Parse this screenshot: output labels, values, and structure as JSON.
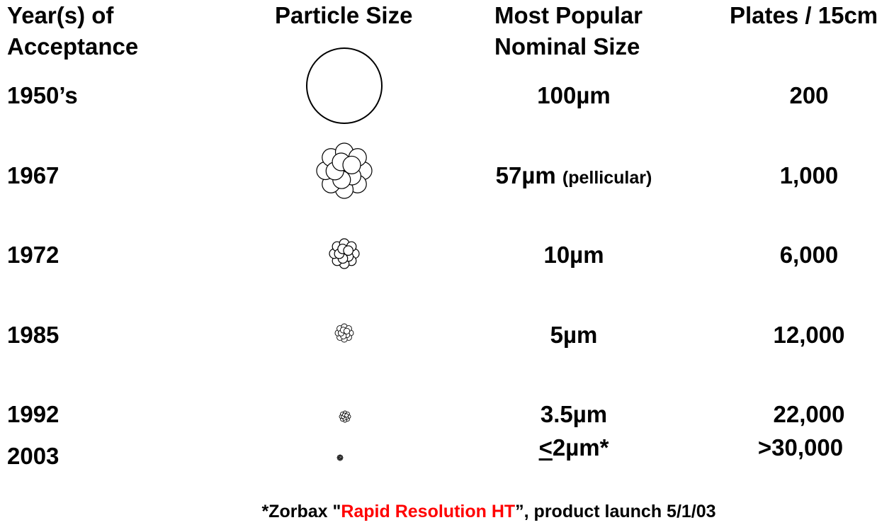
{
  "headers": {
    "year": [
      "Year(s) of",
      "Acceptance"
    ],
    "particle": "Particle Size",
    "nominal": [
      "Most Popular",
      "Nominal Size"
    ],
    "plates": "Plates / 15cm"
  },
  "rows": [
    {
      "year": "1950’s",
      "size": "100µm",
      "note": "",
      "plates": "200",
      "particle_style": "solid-sphere",
      "relative_size": 1.0
    },
    {
      "year": "1967",
      "size": "57µm",
      "note": "(pellicular)",
      "plates": "1,000",
      "particle_style": "cluster",
      "relative_size": 0.71
    },
    {
      "year": "1972",
      "size": "10µm",
      "note": "",
      "plates": "6,000",
      "particle_style": "cluster",
      "relative_size": 0.4
    },
    {
      "year": "1985",
      "size": "5µm",
      "note": "",
      "plates": "12,000",
      "particle_style": "cluster",
      "relative_size": 0.24
    },
    {
      "year": "1992",
      "size": "3.5µm",
      "note": "",
      "plates": "22,000",
      "particle_style": "cluster",
      "relative_size": 0.15
    },
    {
      "year": "2003",
      "size_prefix": "<",
      "size": "2µm*",
      "note": "",
      "plates": ">30,000",
      "particle_style": "cluster",
      "relative_size": 0.07
    }
  ],
  "footnote": {
    "before": "*Zorbax \"",
    "highlight": "Rapid Resolution HT",
    "after": "”, product launch 5/1/03",
    "highlight_color": "#ff0000"
  }
}
